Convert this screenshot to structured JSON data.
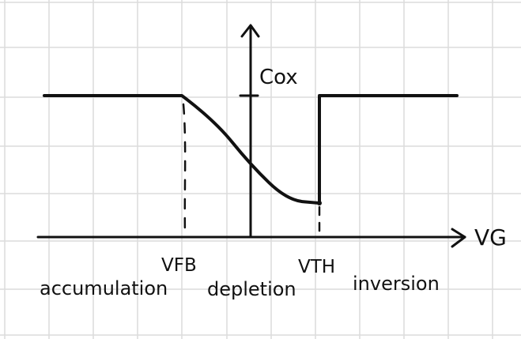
{
  "labels": {
    "y_axis_label": "Cox",
    "x_axis_label": "VG",
    "vfb": "VFB",
    "vth": "VTH",
    "accumulation": "accumulation",
    "depletion": "depletion",
    "inversion": "inversion"
  },
  "chart_data": {
    "type": "line",
    "series": [
      {
        "points": [
          {
            "x": -4.5,
            "y": 1.0
          },
          {
            "x": -1.5,
            "y": 1.0
          },
          {
            "x": -0.8,
            "y": 0.83
          },
          {
            "x": 0.0,
            "y": 0.51
          },
          {
            "x": 0.8,
            "y": 0.26
          },
          {
            "x": 1.5,
            "y": 0.24
          },
          {
            "x": 1.5,
            "y": 1.0
          },
          {
            "x": 4.5,
            "y": 1.0
          }
        ]
      }
    ],
    "xlabel": "VG",
    "ylabel": "Cox",
    "xticks": [
      "VFB",
      "VTH"
    ],
    "regions": [
      "accumulation",
      "depletion",
      "inversion"
    ],
    "grid": true
  },
  "colors": {
    "grid": "#dcdcdc",
    "ink": "#111111"
  }
}
